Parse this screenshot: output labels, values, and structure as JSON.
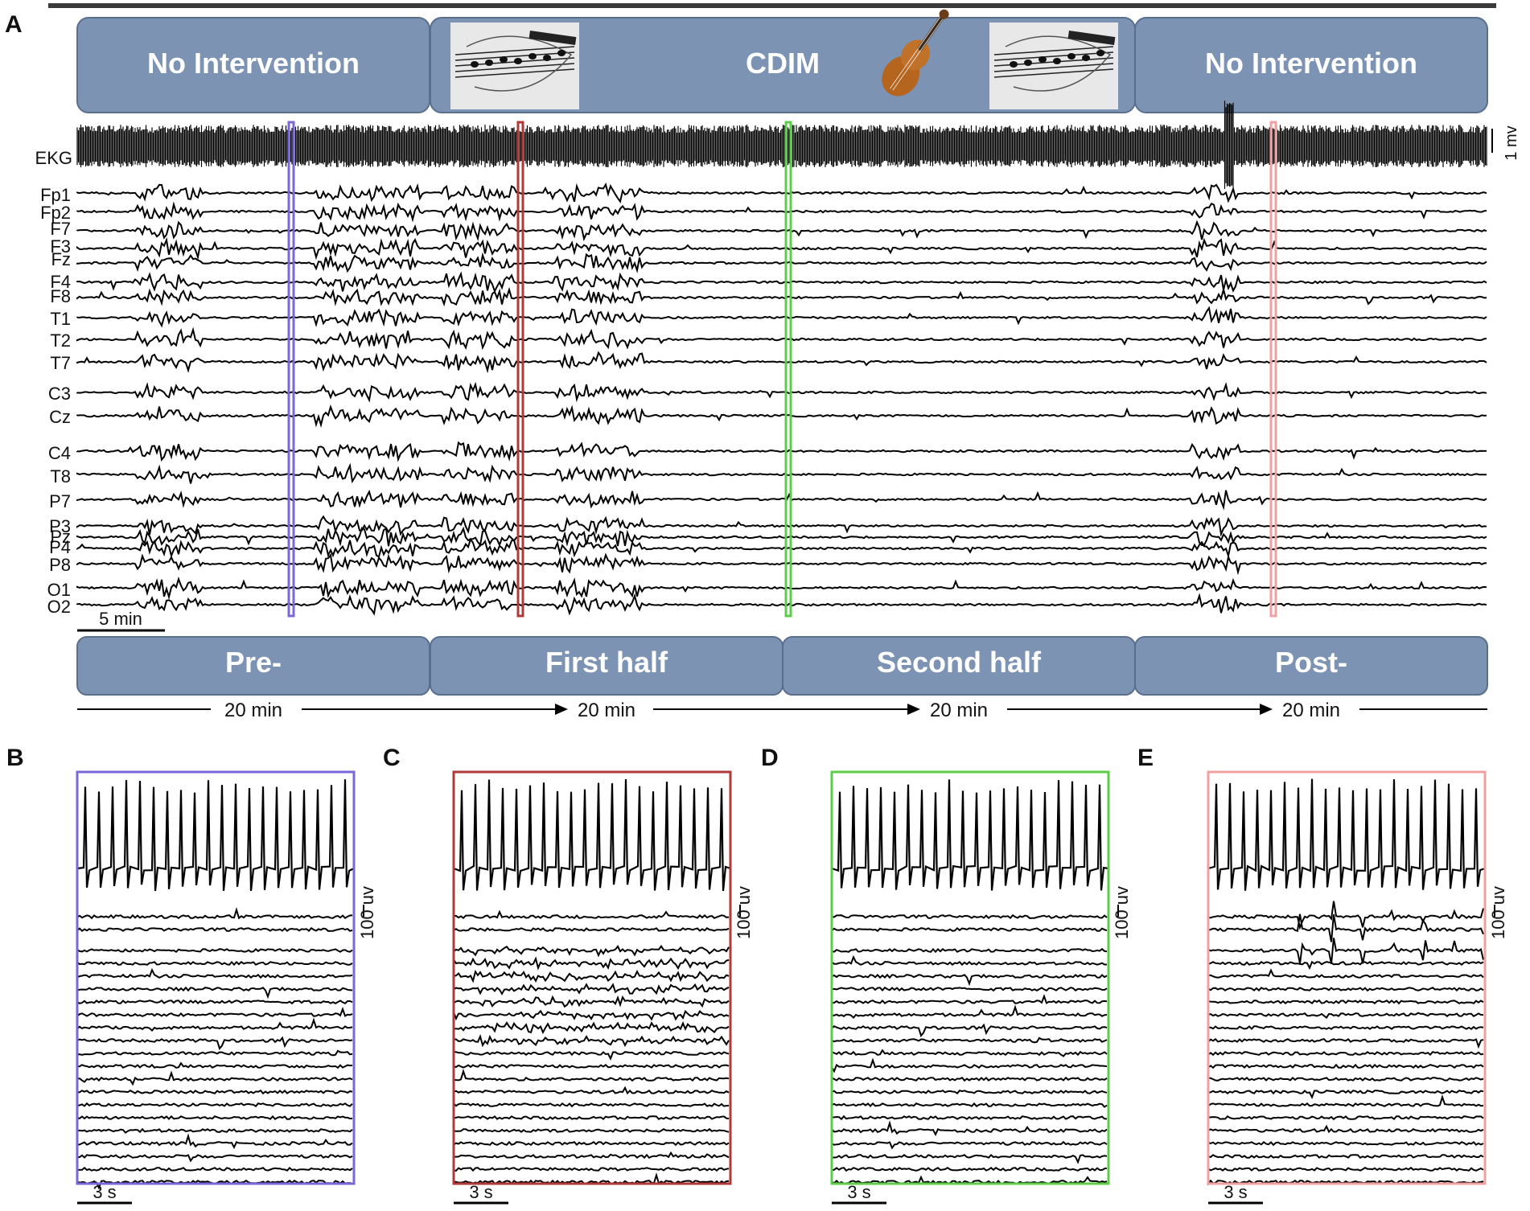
{
  "panel_a": {
    "letter": "A",
    "top_phases": [
      "No Intervention",
      "CDIM",
      "No Intervention"
    ],
    "top_phase_icons": [
      "sheet-music-icon",
      "violin-icon",
      "sheet-music-icon"
    ],
    "bottom_phases": [
      "Pre-",
      "First half",
      "Second half",
      "Post-"
    ],
    "durations": [
      "20 min",
      "20 min",
      "20 min",
      "20 min"
    ],
    "ekg_label": "EKG",
    "ekg_scale": "1 mv",
    "time_scale": "5 min",
    "channels": [
      "Fp1",
      "Fp2",
      "F7",
      "F3",
      "Fz",
      "F4",
      "F8",
      "T1",
      "T2",
      "T7",
      "C3",
      "Cz",
      "C4",
      "T8",
      "P7",
      "P3",
      "Pz",
      "P4",
      "P8",
      "O1",
      "O2"
    ],
    "markers": [
      {
        "panel": "B",
        "color": "#7b68d8"
      },
      {
        "panel": "C",
        "color": "#b03a3a"
      },
      {
        "panel": "D",
        "color": "#5ccc4a"
      },
      {
        "panel": "E",
        "color": "#f0a0a0"
      }
    ]
  },
  "detail_panels": [
    {
      "letter": "B",
      "color": "#7b68d8",
      "amp_scale": "100 uv",
      "time_scale": "3 s"
    },
    {
      "letter": "C",
      "color": "#b03a3a",
      "amp_scale": "100 uv",
      "time_scale": "3 s"
    },
    {
      "letter": "D",
      "color": "#5ccc4a",
      "amp_scale": "100 uv",
      "time_scale": "3 s"
    },
    {
      "letter": "E",
      "color": "#f0a0a0",
      "amp_scale": "100 uv",
      "time_scale": "3 s"
    }
  ],
  "colors": {
    "phase_box": "#7c93b3",
    "phase_border": "#5a6f8e",
    "trace": "#000000"
  }
}
